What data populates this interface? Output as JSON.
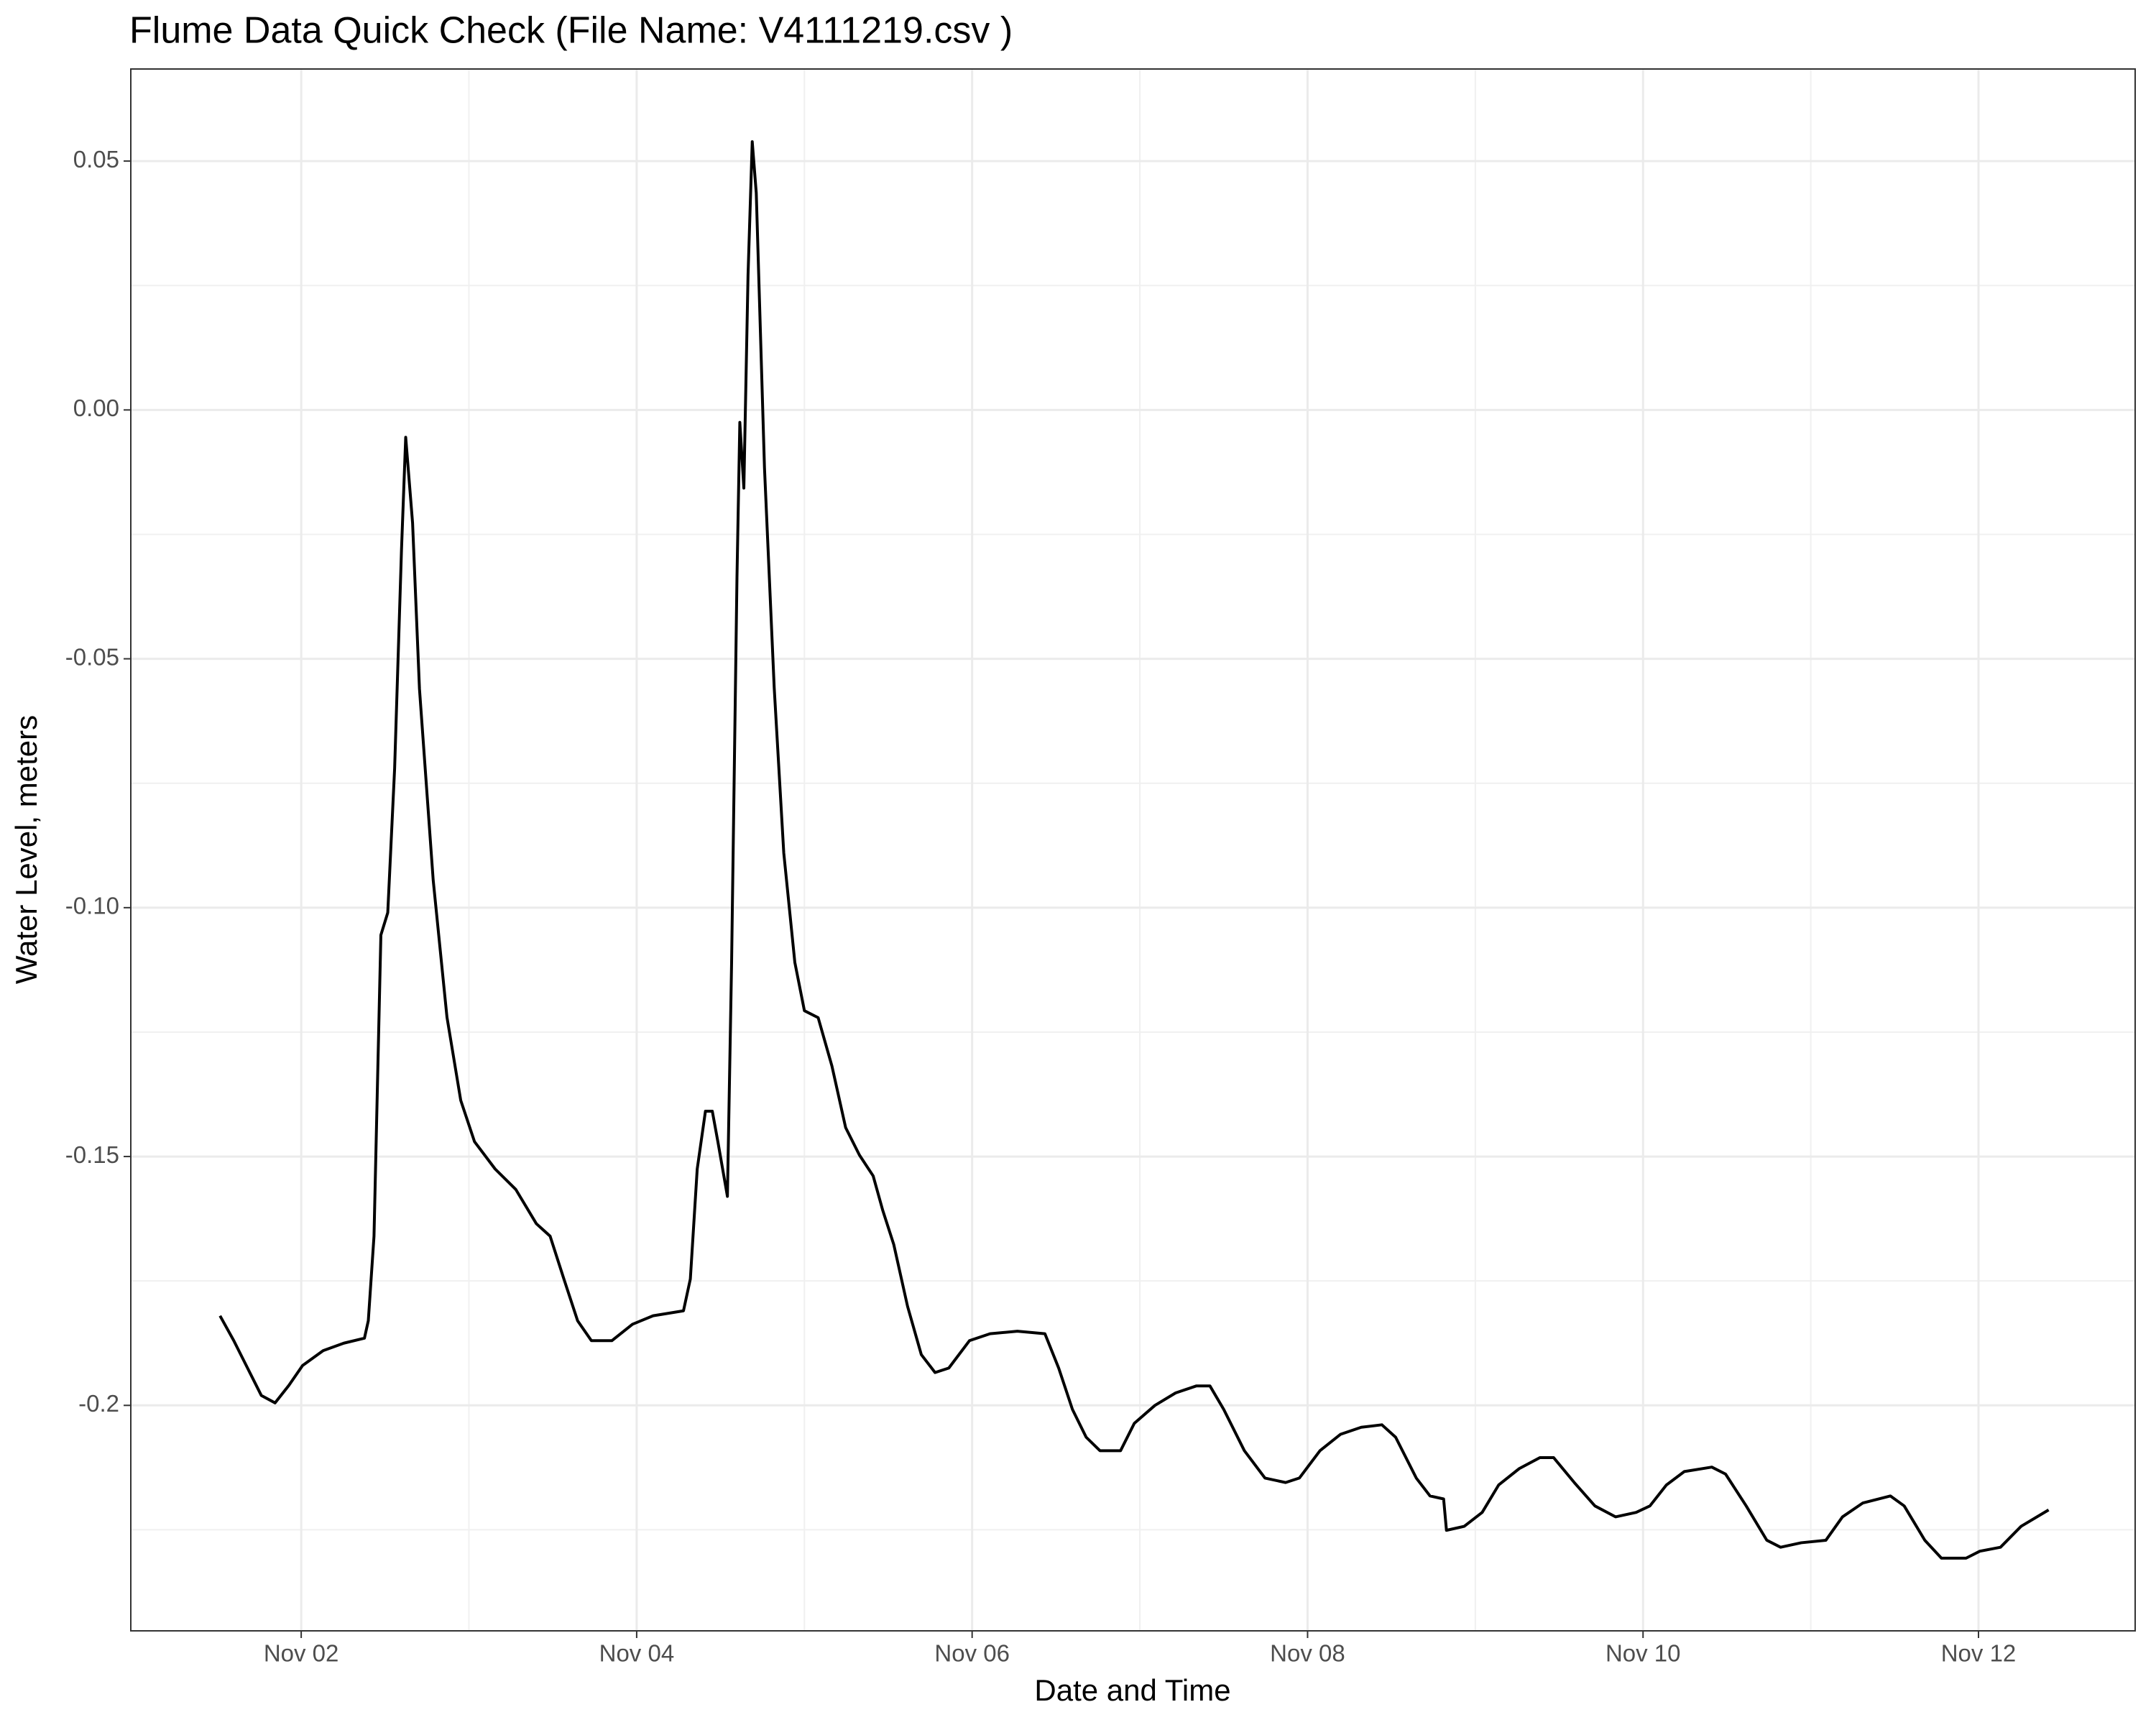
{
  "chart_data": {
    "type": "line",
    "title": "Flume Data Quick Check (File Name: V4111219.csv )",
    "x_label": "Date and Time",
    "y_label": "Water Level, meters",
    "color": "#000000",
    "grid": true,
    "xlim": [
      0.984,
      12.934
    ],
    "ylim": [
      -0.2453,
      0.0685
    ],
    "xticks": [
      {
        "value": 2,
        "label": "Nov 02"
      },
      {
        "value": 4,
        "label": "Nov 04"
      },
      {
        "value": 6,
        "label": "Nov 06"
      },
      {
        "value": 8,
        "label": "Nov 08"
      },
      {
        "value": 10,
        "label": "Nov 10"
      },
      {
        "value": 12,
        "label": "Nov 12"
      }
    ],
    "x_minor_ticks": [
      3,
      5,
      7,
      9,
      11
    ],
    "yticks": [
      -0.2,
      -0.15,
      {
        "value": -0.1,
        "label": "-0.10"
      },
      -0.05,
      {
        "value": 0,
        "label": "0.00"
      },
      0.05
    ],
    "y_minor_ticks": [
      -0.225,
      -0.175,
      -0.125,
      -0.075,
      -0.025,
      0.025
    ],
    "x": [
      1.516,
      1.598,
      1.68,
      1.762,
      1.844,
      1.926,
      2.008,
      2.131,
      2.254,
      2.377,
      2.4,
      2.434,
      2.475,
      2.516,
      2.557,
      2.598,
      2.623,
      2.664,
      2.705,
      2.787,
      2.869,
      2.951,
      3.033,
      3.156,
      3.279,
      3.402,
      3.484,
      3.566,
      3.648,
      3.73,
      3.852,
      3.975,
      4.098,
      4.279,
      4.32,
      4.361,
      4.41,
      4.451,
      4.484,
      4.541,
      4.566,
      4.598,
      4.615,
      4.639,
      4.664,
      4.689,
      4.713,
      4.762,
      4.82,
      4.877,
      4.943,
      5.0,
      5.082,
      5.164,
      5.246,
      5.328,
      5.41,
      5.467,
      5.533,
      5.615,
      5.697,
      5.779,
      5.861,
      5.984,
      6.107,
      6.27,
      6.434,
      6.516,
      6.598,
      6.68,
      6.762,
      6.885,
      6.967,
      7.09,
      7.213,
      7.336,
      7.418,
      7.5,
      7.623,
      7.746,
      7.869,
      7.951,
      8.074,
      8.197,
      8.32,
      8.443,
      8.525,
      8.648,
      8.73,
      8.811,
      8.828,
      8.934,
      9.041,
      9.139,
      9.262,
      9.385,
      9.467,
      9.59,
      9.713,
      9.836,
      9.959,
      10.041,
      10.139,
      10.246,
      10.41,
      10.492,
      10.615,
      10.738,
      10.82,
      10.943,
      11.09,
      11.189,
      11.311,
      11.475,
      11.557,
      11.68,
      11.779,
      11.926,
      12.008,
      12.131,
      12.254,
      12.418
    ],
    "values": [
      -0.182,
      -0.187,
      -0.1925,
      -0.198,
      -0.1995,
      -0.196,
      -0.192,
      -0.189,
      -0.1875,
      -0.1865,
      -0.183,
      -0.166,
      -0.1055,
      -0.101,
      -0.072,
      -0.028,
      -0.0055,
      -0.0227,
      -0.056,
      -0.0945,
      -0.122,
      -0.1387,
      -0.147,
      -0.1525,
      -0.1566,
      -0.1635,
      -0.166,
      -0.1746,
      -0.183,
      -0.187,
      -0.187,
      -0.1837,
      -0.182,
      -0.181,
      -0.1746,
      -0.1525,
      -0.1409,
      -0.1409,
      -0.147,
      -0.158,
      -0.111,
      -0.0337,
      -0.0025,
      -0.0157,
      0.0271,
      0.0539,
      0.0436,
      -0.0116,
      -0.0558,
      -0.089,
      -0.111,
      -0.1207,
      -0.1221,
      -0.1318,
      -0.1442,
      -0.1497,
      -0.1539,
      -0.1608,
      -0.1677,
      -0.1801,
      -0.1898,
      -0.1934,
      -0.1925,
      -0.187,
      -0.1856,
      -0.1851,
      -0.1856,
      -0.1925,
      -0.2008,
      -0.2064,
      -0.2091,
      -0.2091,
      -0.2036,
      -0.2,
      -0.1975,
      -0.1961,
      -0.1961,
      -0.2008,
      -0.2091,
      -0.2146,
      -0.2155,
      -0.2146,
      -0.2091,
      -0.2058,
      -0.2044,
      -0.2039,
      -0.2064,
      -0.2146,
      -0.2182,
      -0.2188,
      -0.2251,
      -0.2243,
      -0.2215,
      -0.216,
      -0.2127,
      -0.2105,
      -0.2105,
      -0.2155,
      -0.2202,
      -0.2224,
      -0.2215,
      -0.2202,
      -0.216,
      -0.2133,
      -0.2124,
      -0.2138,
      -0.2202,
      -0.2271,
      -0.2285,
      -0.2276,
      -0.2271,
      -0.2224,
      -0.2196,
      -0.2182,
      -0.2202,
      -0.2271,
      -0.2307,
      -0.2307,
      -0.2293,
      -0.2285,
      -0.2243,
      -0.221
    ]
  }
}
